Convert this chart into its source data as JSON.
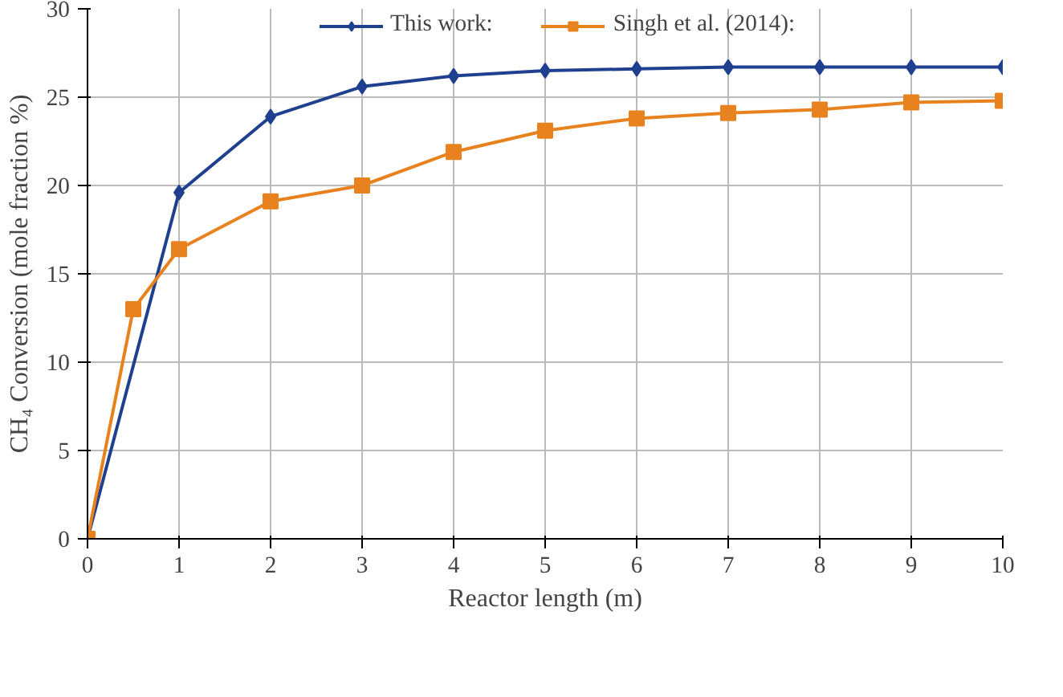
{
  "chart_data": {
    "type": "line",
    "xlabel": "Reactor length (m)",
    "ylabel": "CH₄ Conversion (mole fraction %)",
    "series": [
      {
        "name": "This work:",
        "color": "#1f3f8f",
        "marker": "diamond",
        "x": [
          0,
          1,
          2,
          3,
          4,
          5,
          6,
          7,
          8,
          9,
          10
        ],
        "values": [
          0,
          19.6,
          23.9,
          25.6,
          26.2,
          26.5,
          26.6,
          26.7,
          26.7,
          26.7,
          26.7
        ]
      },
      {
        "name": "Singh et al. (2014):",
        "color": "#e8821e",
        "marker": "square",
        "x": [
          0,
          0.5,
          1,
          2,
          3,
          4,
          5,
          6,
          7,
          8,
          9,
          10
        ],
        "values": [
          0,
          13,
          16.4,
          19.1,
          20.0,
          21.9,
          23.1,
          23.8,
          24.1,
          24.3,
          24.7,
          24.8
        ]
      }
    ],
    "xlim": [
      0,
      10
    ],
    "ylim": [
      0,
      30
    ],
    "xticks": [
      0,
      1,
      2,
      3,
      4,
      5,
      6,
      7,
      8,
      9,
      10
    ],
    "yticks": [
      0,
      5,
      10,
      15,
      20,
      25,
      30
    ],
    "grid": true,
    "legend": "top",
    "line_style": "solid"
  }
}
